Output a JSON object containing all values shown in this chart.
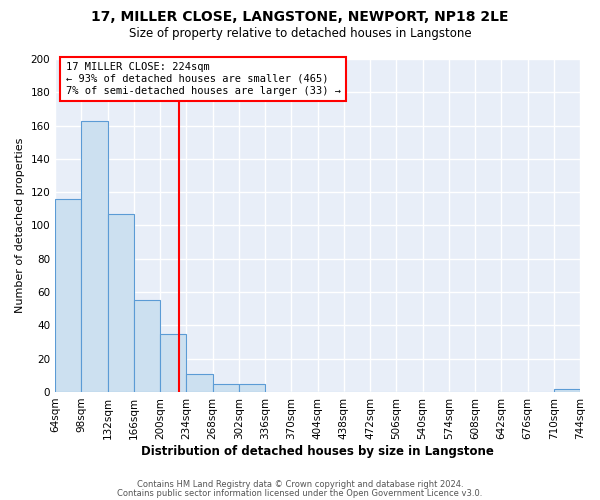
{
  "title": "17, MILLER CLOSE, LANGSTONE, NEWPORT, NP18 2LE",
  "subtitle": "Size of property relative to detached houses in Langstone",
  "xlabel": "Distribution of detached houses by size in Langstone",
  "ylabel": "Number of detached properties",
  "bin_edges": [
    64,
    98,
    132,
    166,
    200,
    234,
    268,
    302,
    336,
    370,
    404,
    438,
    472,
    506,
    540,
    574,
    608,
    642,
    676,
    710,
    744
  ],
  "bin_counts": [
    116,
    163,
    107,
    55,
    35,
    11,
    5,
    5,
    0,
    0,
    0,
    0,
    0,
    0,
    0,
    0,
    0,
    0,
    0,
    2
  ],
  "bar_facecolor": "#cce0f0",
  "bar_edgecolor": "#5b9bd5",
  "vline_x": 224,
  "vline_color": "red",
  "ylim": [
    0,
    200
  ],
  "yticks": [
    0,
    20,
    40,
    60,
    80,
    100,
    120,
    140,
    160,
    180,
    200
  ],
  "tick_labels": [
    "64sqm",
    "98sqm",
    "132sqm",
    "166sqm",
    "200sqm",
    "234sqm",
    "268sqm",
    "302sqm",
    "336sqm",
    "370sqm",
    "404sqm",
    "438sqm",
    "472sqm",
    "506sqm",
    "540sqm",
    "574sqm",
    "608sqm",
    "642sqm",
    "676sqm",
    "710sqm",
    "744sqm"
  ],
  "annotation_title": "17 MILLER CLOSE: 224sqm",
  "annotation_line1": "← 93% of detached houses are smaller (465)",
  "annotation_line2": "7% of semi-detached houses are larger (33) →",
  "footer1": "Contains HM Land Registry data © Crown copyright and database right 2024.",
  "footer2": "Contains public sector information licensed under the Open Government Licence v3.0.",
  "bg_color": "#ffffff",
  "plot_bg_color": "#e8eef8",
  "grid_color": "white",
  "title_fontsize": 10,
  "subtitle_fontsize": 8.5,
  "footer_fontsize": 6.0,
  "ylabel_fontsize": 8,
  "xlabel_fontsize": 8.5
}
